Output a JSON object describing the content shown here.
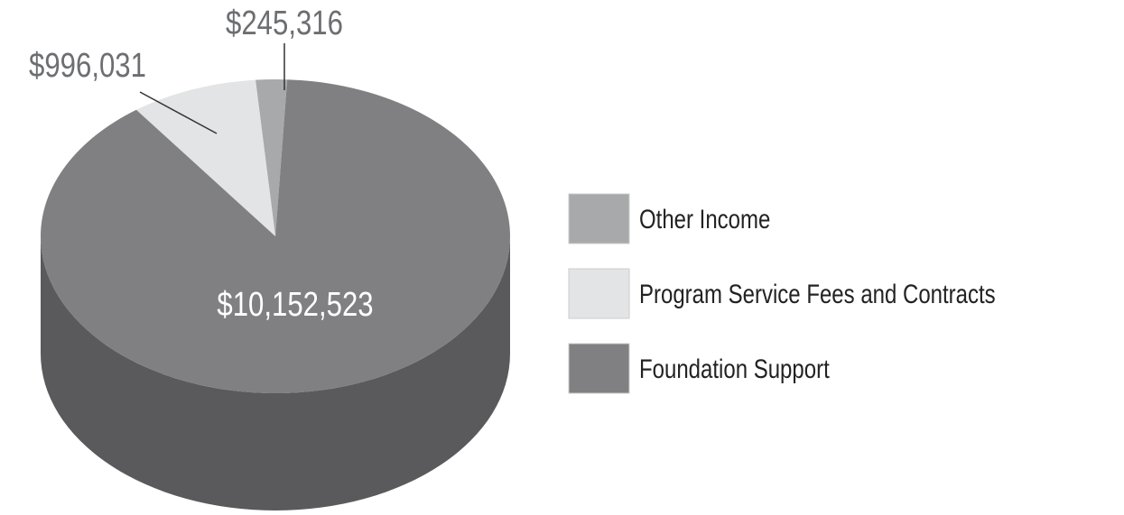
{
  "chart_data": {
    "type": "pie",
    "categories": [
      "Other Income",
      "Program Service Fees and Contracts",
      "Foundation Support"
    ],
    "values": [
      245316,
      996031,
      10152523
    ],
    "value_labels": [
      "$245,316",
      "$996,031",
      "$10,152,523"
    ],
    "colors": [
      "#a8a9ab",
      "#e3e4e5",
      "#808083"
    ]
  }
}
